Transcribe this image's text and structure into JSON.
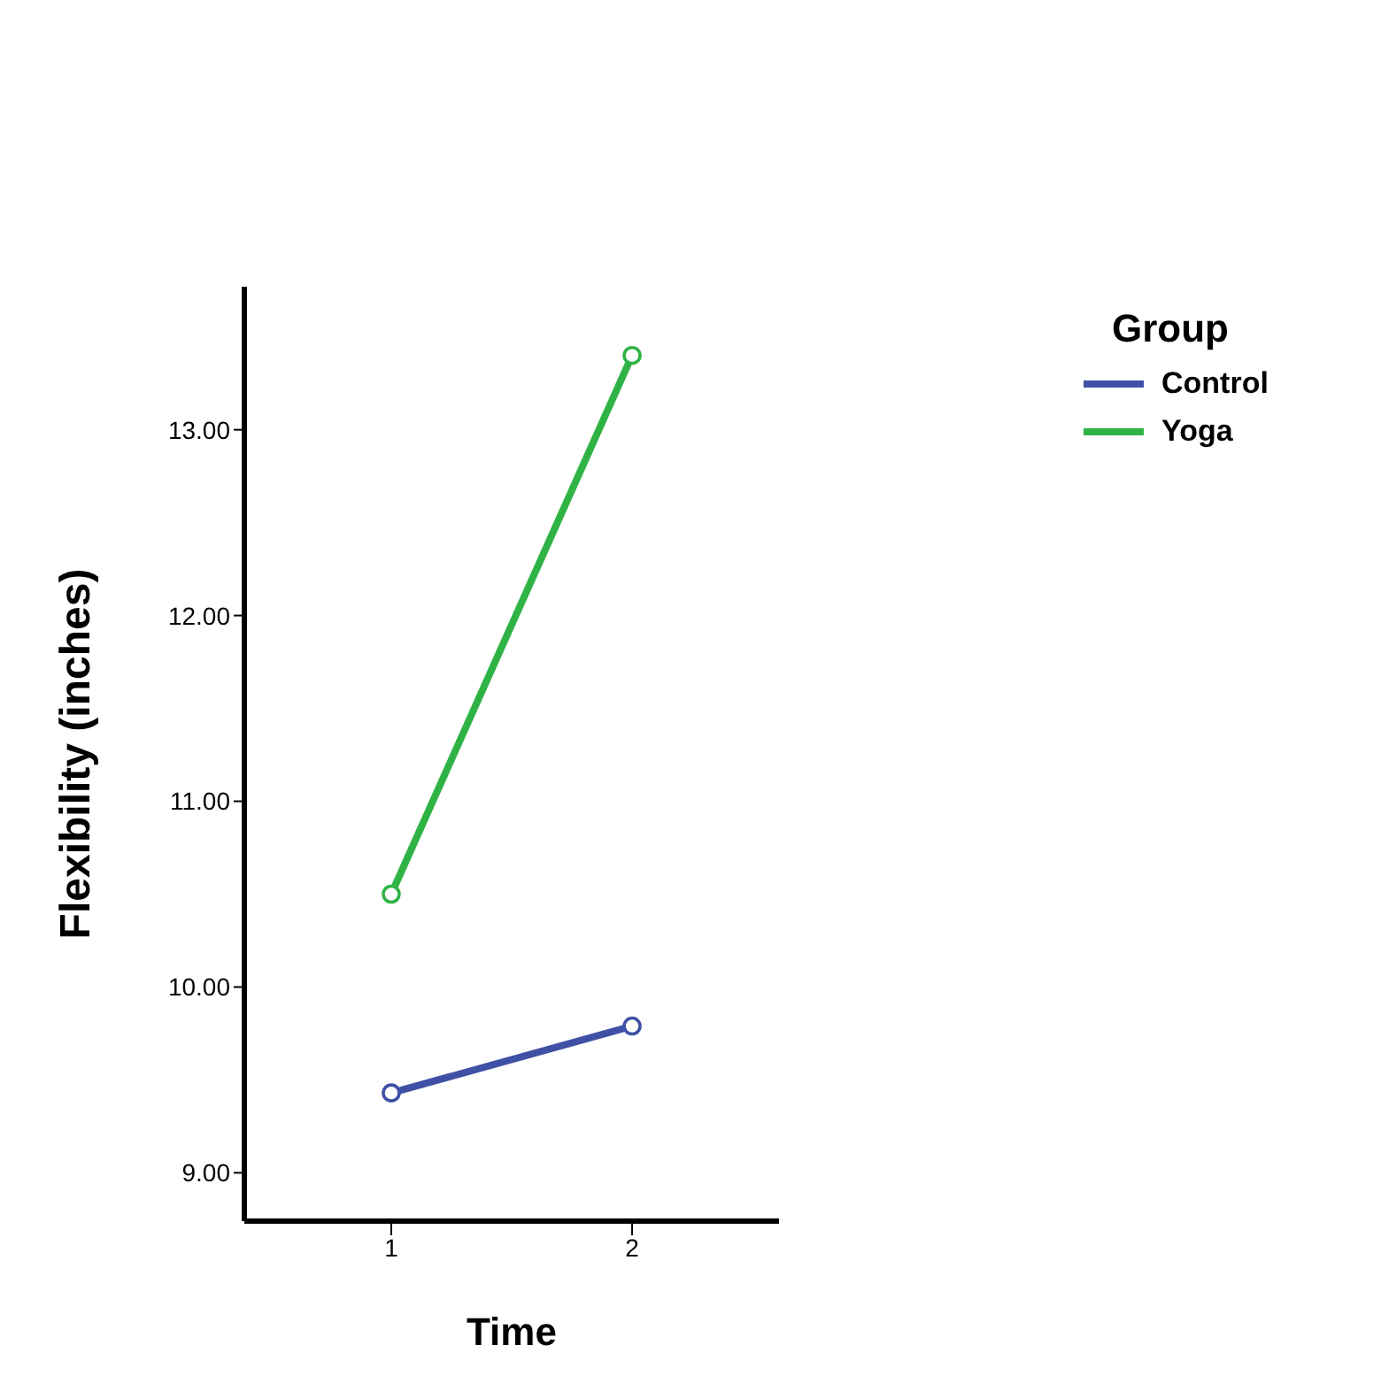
{
  "chart_data": {
    "type": "line",
    "xlabel": "Time",
    "ylabel": "Flexibility (inches)",
    "legend_title": "Group",
    "categories": [
      "1",
      "2"
    ],
    "series": [
      {
        "name": "Control",
        "color": "#3f51a5",
        "values": [
          9.43,
          9.79
        ]
      },
      {
        "name": "Yoga",
        "color": "#2fb345",
        "values": [
          10.5,
          13.4
        ]
      }
    ],
    "ylim": [
      8.74,
      13.77
    ],
    "yticks": [
      {
        "value": 9,
        "label": "9.00"
      },
      {
        "value": 10,
        "label": "10.00"
      },
      {
        "value": 11,
        "label": "11.00"
      },
      {
        "value": 12,
        "label": "12.00"
      },
      {
        "value": 13,
        "label": "13.00"
      }
    ],
    "grid": false,
    "legend": "top right",
    "marker": "circle",
    "line_style": "solid"
  }
}
